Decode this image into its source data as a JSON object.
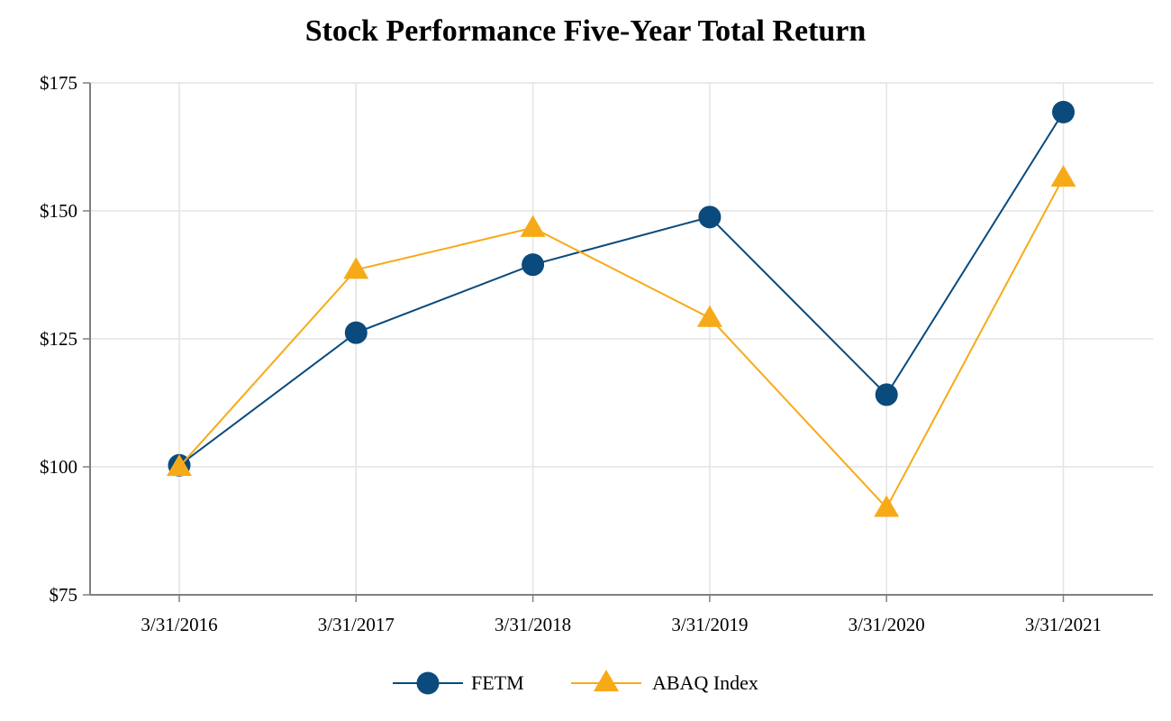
{
  "chart_data": {
    "type": "line",
    "title": "Stock Performance Five-Year Total Return",
    "xlabel": "",
    "ylabel": "",
    "categories": [
      "3/31/2016",
      "3/31/2017",
      "3/31/2018",
      "3/31/2019",
      "3/31/2020",
      "3/31/2021"
    ],
    "ylim": [
      75,
      175
    ],
    "yticks": [
      75,
      100,
      125,
      150,
      175
    ],
    "ytick_labels": [
      "$75",
      "$100",
      "$125",
      "$150",
      "$175"
    ],
    "grid": true,
    "legend_position": "bottom-center",
    "series": [
      {
        "name": "FETM",
        "marker": "circle",
        "color": "#0a4a7c",
        "values": [
          100.3,
          126.2,
          139.5,
          148.8,
          114.1,
          169.3
        ]
      },
      {
        "name": "ABAQ Index",
        "marker": "triangle",
        "color": "#f7aa17",
        "values": [
          100.0,
          138.5,
          146.7,
          129.1,
          92.0,
          156.5
        ]
      }
    ]
  }
}
